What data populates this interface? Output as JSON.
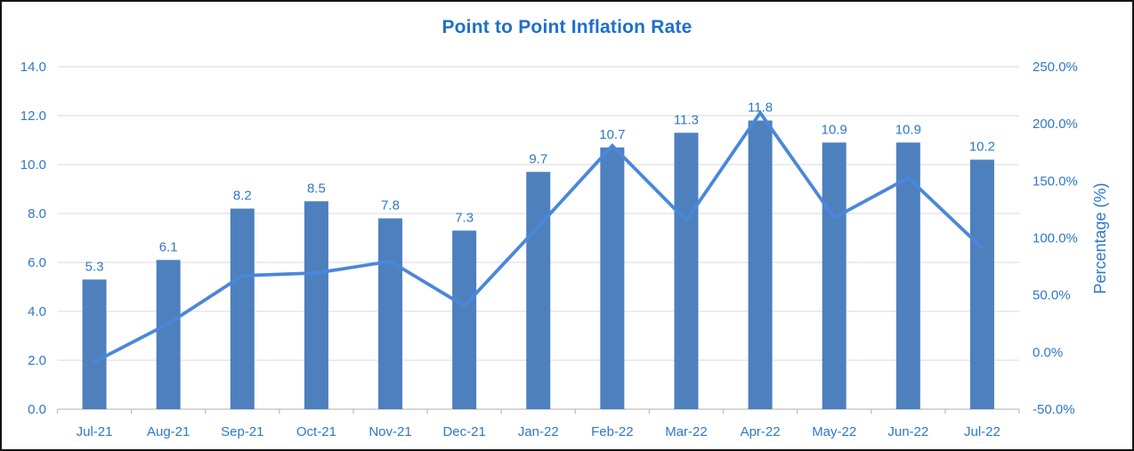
{
  "chart_data": {
    "type": "bar",
    "combo": "bar+line",
    "title": "Point to Point Inflation Rate",
    "categories": [
      "Jul-21",
      "Aug-21",
      "Sep-21",
      "Oct-21",
      "Nov-21",
      "Dec-21",
      "Jan-22",
      "Feb-22",
      "Mar-22",
      "Apr-22",
      "May-22",
      "Jun-22",
      "Jul-22"
    ],
    "series": [
      {
        "name": "inflation_rate_bars",
        "type": "bar",
        "axis": "left",
        "values": [
          5.3,
          6.1,
          8.2,
          8.5,
          7.8,
          7.3,
          9.7,
          10.7,
          11.3,
          11.8,
          10.9,
          10.9,
          10.2
        ],
        "labels_visible": true
      },
      {
        "name": "percentage_change_line",
        "type": "line",
        "axis": "right",
        "values": [
          -8.6,
          24.9,
          67.0,
          69.3,
          79.5,
          40.5,
          109.9,
          180.8,
          115.3,
          209.6,
          117.7,
          152.7,
          91.2
        ],
        "labels_visible": false
      }
    ],
    "left_axis": {
      "min": 0,
      "max": 14,
      "step": 2,
      "tick_labels": [
        "14.0",
        "12.0",
        "10.0",
        "8.0",
        "6.0",
        "4.0",
        "2.0",
        "0.0"
      ]
    },
    "right_axis": {
      "min": -50,
      "max": 250,
      "step": 50,
      "title": "Percentage (%)",
      "tick_labels": [
        "250.0%",
        "200.0%",
        "150.0%",
        "100.0%",
        "50.0%",
        "0.0%",
        "-50.0%"
      ]
    },
    "xlabel": "",
    "ylabel_right": "Percentage (%)",
    "grid": true,
    "legend": "none",
    "colors": {
      "bar": "#4E80BD",
      "line": "#4A87DB",
      "title_text": "#1F70C8",
      "axis_text": "#2E79C6",
      "gridline": "#D9D9D9",
      "axis_line": "#BFBFBF",
      "background": "#FFFFFF",
      "frame_border": "#151515"
    }
  }
}
